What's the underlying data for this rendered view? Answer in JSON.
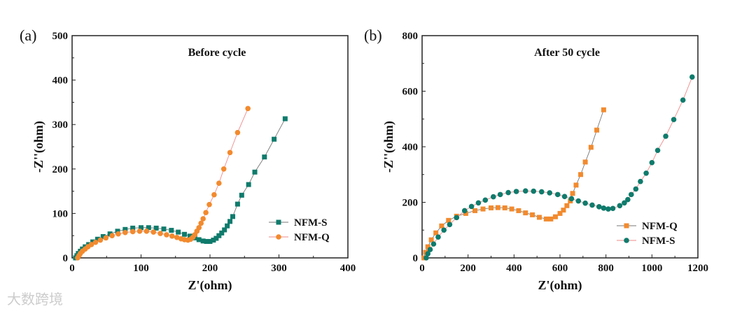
{
  "colors": {
    "teal": "#0f7b6c",
    "orange": "#f28a2e",
    "grey_line": "#777777",
    "pink_line": "#f08a8a"
  },
  "watermark": "大数跨境",
  "chart_data": [
    {
      "type": "scatter",
      "panel_label": "(a)",
      "title": "Before cycle",
      "xlabel": "Z'(ohm)",
      "ylabel": "-Z''(ohm)",
      "xlim": [
        0,
        400
      ],
      "ylim": [
        0,
        500
      ],
      "xticks": [
        "0",
        "100",
        "200",
        "300",
        "400"
      ],
      "yticks": [
        "0",
        "100",
        "200",
        "300",
        "400",
        "500"
      ],
      "legend_position": "bottom-right",
      "series": [
        {
          "name": "NFM-S",
          "marker": "square",
          "color": "teal",
          "line": "grey_line",
          "points": [
            [
              5,
              0
            ],
            [
              7,
              5
            ],
            [
              9,
              10
            ],
            [
              12,
              15
            ],
            [
              15,
              20
            ],
            [
              19,
              25
            ],
            [
              24,
              30
            ],
            [
              30,
              36
            ],
            [
              37,
              42
            ],
            [
              45,
              48
            ],
            [
              55,
              54
            ],
            [
              66,
              60
            ],
            [
              77,
              64
            ],
            [
              88,
              67
            ],
            [
              100,
              68
            ],
            [
              111,
              68
            ],
            [
              122,
              67
            ],
            [
              133,
              65
            ],
            [
              144,
              62
            ],
            [
              154,
              58
            ],
            [
              163,
              53
            ],
            [
              171,
              49
            ],
            [
              178,
              45
            ],
            [
              184,
              41
            ],
            [
              190,
              38
            ],
            [
              195,
              37
            ],
            [
              200,
              37
            ],
            [
              205,
              40
            ],
            [
              209,
              44
            ],
            [
              213,
              50
            ],
            [
              217,
              56
            ],
            [
              221,
              63
            ],
            [
              225,
              72
            ],
            [
              229,
              82
            ],
            [
              233,
              93
            ],
            [
              240,
              121
            ],
            [
              246,
              141
            ],
            [
              256,
              165
            ],
            [
              265,
              193
            ],
            [
              279,
              227
            ],
            [
              293,
              267
            ],
            [
              309,
              313
            ]
          ]
        },
        {
          "name": "NFM-Q",
          "marker": "circle",
          "color": "orange",
          "line": "pink_line",
          "points": [
            [
              8,
              0
            ],
            [
              10,
              5
            ],
            [
              12,
              10
            ],
            [
              15,
              15
            ],
            [
              19,
              20
            ],
            [
              23,
              25
            ],
            [
              28,
              30
            ],
            [
              34,
              35
            ],
            [
              41,
              40
            ],
            [
              49,
              45
            ],
            [
              58,
              50
            ],
            [
              67,
              54
            ],
            [
              77,
              57
            ],
            [
              88,
              59
            ],
            [
              98,
              60
            ],
            [
              108,
              60
            ],
            [
              118,
              58
            ],
            [
              128,
              55
            ],
            [
              137,
              52
            ],
            [
              145,
              49
            ],
            [
              152,
              46
            ],
            [
              158,
              43
            ],
            [
              163,
              41
            ],
            [
              168,
              40
            ],
            [
              172,
              42
            ],
            [
              175,
              46
            ],
            [
              178,
              52
            ],
            [
              181,
              60
            ],
            [
              184,
              68
            ],
            [
              187,
              78
            ],
            [
              190,
              88
            ],
            [
              194,
              102
            ],
            [
              199,
              120
            ],
            [
              206,
              142
            ],
            [
              213,
              168
            ],
            [
              220,
              200
            ],
            [
              229,
              237
            ],
            [
              240,
              282
            ],
            [
              255,
              336
            ]
          ]
        }
      ]
    },
    {
      "type": "scatter",
      "panel_label": "(b)",
      "title": "After 50 cycle",
      "xlabel": "Z'(ohm)",
      "ylabel": "-Z''(ohm)",
      "xlim": [
        0,
        1200
      ],
      "ylim": [
        0,
        800
      ],
      "xticks": [
        "0",
        "200",
        "400",
        "600",
        "800",
        "1000",
        "1200"
      ],
      "yticks": [
        "0",
        "200",
        "400",
        "600",
        "800"
      ],
      "legend_position": "bottom-right",
      "series": [
        {
          "name": "NFM-Q",
          "marker": "square",
          "color": "orange",
          "line": "grey_line",
          "points": [
            [
              8,
              0
            ],
            [
              15,
              20
            ],
            [
              25,
              40
            ],
            [
              40,
              65
            ],
            [
              60,
              90
            ],
            [
              85,
              115
            ],
            [
              115,
              135
            ],
            [
              150,
              150
            ],
            [
              190,
              160
            ],
            [
              230,
              170
            ],
            [
              265,
              176
            ],
            [
              300,
              180
            ],
            [
              330,
              181
            ],
            [
              360,
              180
            ],
            [
              390,
              176
            ],
            [
              420,
              170
            ],
            [
              450,
              162
            ],
            [
              480,
              155
            ],
            [
              510,
              146
            ],
            [
              540,
              140
            ],
            [
              560,
              140
            ],
            [
              580,
              148
            ],
            [
              600,
              160
            ],
            [
              615,
              172
            ],
            [
              630,
              188
            ],
            [
              645,
              205
            ],
            [
              655,
              232
            ],
            [
              670,
              262
            ],
            [
              690,
              300
            ],
            [
              710,
              345
            ],
            [
              735,
              398
            ],
            [
              760,
              460
            ],
            [
              790,
              533
            ]
          ]
        },
        {
          "name": "NFM-S",
          "marker": "circle",
          "color": "teal",
          "line": "pink_line",
          "points": [
            [
              18,
              0
            ],
            [
              25,
              15
            ],
            [
              35,
              30
            ],
            [
              50,
              50
            ],
            [
              70,
              75
            ],
            [
              95,
              100
            ],
            [
              120,
              120
            ],
            [
              150,
              145
            ],
            [
              185,
              170
            ],
            [
              215,
              185
            ],
            [
              245,
              198
            ],
            [
              275,
              208
            ],
            [
              310,
              220
            ],
            [
              340,
              228
            ],
            [
              375,
              235
            ],
            [
              410,
              239
            ],
            [
              450,
              241
            ],
            [
              485,
              240
            ],
            [
              520,
              238
            ],
            [
              555,
              234
            ],
            [
              590,
              228
            ],
            [
              620,
              221
            ],
            [
              650,
              213
            ],
            [
              680,
              205
            ],
            [
              710,
              197
            ],
            [
              740,
              190
            ],
            [
              770,
              184
            ],
            [
              790,
              179
            ],
            [
              810,
              176
            ],
            [
              830,
              178
            ],
            [
              860,
              188
            ],
            [
              880,
              198
            ],
            [
              895,
              210
            ],
            [
              910,
              228
            ],
            [
              930,
              248
            ],
            [
              950,
              275
            ],
            [
              975,
              305
            ],
            [
              1000,
              343
            ],
            [
              1025,
              387
            ],
            [
              1060,
              438
            ],
            [
              1095,
              498
            ],
            [
              1135,
              568
            ],
            [
              1175,
              651
            ]
          ]
        }
      ]
    }
  ]
}
